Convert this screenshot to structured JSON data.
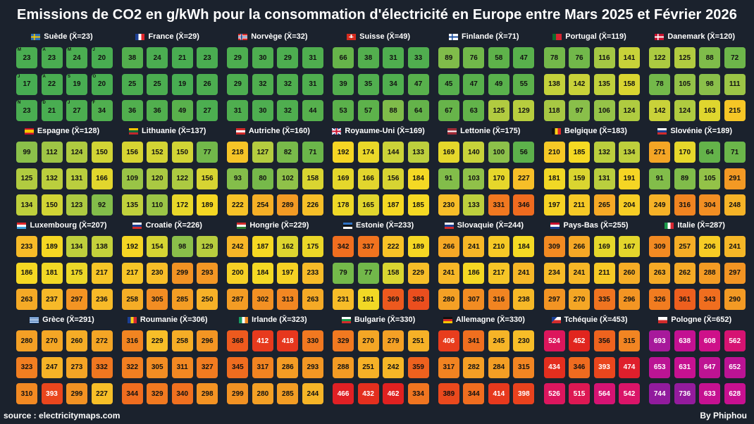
{
  "title": "Emissions de CO2 en g/kWh pour la consommation d'électricité en Europe entre Mars 2025 et Février 2026",
  "footer": {
    "source": "source : electricitymaps.com",
    "author": "By Phiphou"
  },
  "chart_data": {
    "type": "heatmap",
    "unit": "g/kWh",
    "period": "Mars 2025 - Février 2026",
    "month_letters": [
      "M",
      "A",
      "M",
      "J",
      "J",
      "A",
      "S",
      "O",
      "N",
      "D",
      "J",
      "F"
    ],
    "countries": [
      {
        "name": "Suède",
        "mean": 23,
        "flag": "se",
        "values": [
          23,
          23,
          24,
          20,
          17,
          22,
          19,
          20,
          23,
          21,
          27,
          34
        ]
      },
      {
        "name": "France",
        "mean": 29,
        "flag": "fr",
        "values": [
          38,
          24,
          21,
          23,
          25,
          25,
          19,
          26,
          36,
          36,
          49,
          27
        ]
      },
      {
        "name": "Norvège",
        "mean": 32,
        "flag": "no",
        "values": [
          29,
          30,
          29,
          31,
          29,
          32,
          32,
          31,
          31,
          30,
          32,
          44
        ]
      },
      {
        "name": "Suisse",
        "mean": 49,
        "flag": "ch",
        "values": [
          66,
          38,
          31,
          33,
          39,
          35,
          34,
          47,
          53,
          57,
          88,
          64
        ]
      },
      {
        "name": "Finlande",
        "mean": 71,
        "flag": "fi",
        "values": [
          89,
          76,
          58,
          47,
          45,
          47,
          49,
          55,
          67,
          63,
          125,
          129
        ]
      },
      {
        "name": "Portugal",
        "mean": 119,
        "flag": "pt",
        "values": [
          78,
          76,
          116,
          141,
          138,
          142,
          135,
          158,
          118,
          97,
          106,
          124
        ]
      },
      {
        "name": "Danemark",
        "mean": 120,
        "flag": "dk",
        "values": [
          122,
          125,
          88,
          72,
          78,
          105,
          98,
          111,
          142,
          124,
          163,
          215
        ]
      },
      {
        "name": "Espagne",
        "mean": 128,
        "flag": "es",
        "values": [
          99,
          112,
          124,
          150,
          125,
          132,
          131,
          166,
          134,
          150,
          123,
          92
        ]
      },
      {
        "name": "Lithuanie",
        "mean": 137,
        "flag": "lt",
        "values": [
          156,
          152,
          150,
          77,
          109,
          120,
          122,
          156,
          135,
          110,
          172,
          189
        ]
      },
      {
        "name": "Autriche",
        "mean": 160,
        "flag": "at",
        "values": [
          218,
          127,
          82,
          71,
          93,
          80,
          102,
          158,
          222,
          254,
          289,
          226
        ]
      },
      {
        "name": "Royaume-Uni",
        "mean": 169,
        "flag": "gb",
        "values": [
          192,
          174,
          144,
          133,
          169,
          166,
          156,
          184,
          178,
          165,
          187,
          185
        ]
      },
      {
        "name": "Lettonie",
        "mean": 175,
        "flag": "lv",
        "values": [
          169,
          140,
          100,
          56,
          91,
          103,
          170,
          227,
          230,
          133,
          331,
          346
        ]
      },
      {
        "name": "Belgique",
        "mean": 183,
        "flag": "be",
        "values": [
          210,
          185,
          132,
          134,
          181,
          159,
          131,
          191,
          197,
          211,
          265,
          204
        ]
      },
      {
        "name": "Slovénie",
        "mean": 189,
        "flag": "si",
        "values": [
          271,
          170,
          64,
          71,
          91,
          89,
          105,
          291,
          249,
          316,
          304,
          248
        ]
      },
      {
        "name": "Luxembourg",
        "mean": 207,
        "flag": "lu",
        "values": [
          233,
          189,
          134,
          138,
          186,
          181,
          175,
          217,
          263,
          237,
          297,
          236
        ]
      },
      {
        "name": "Croatie",
        "mean": 226,
        "flag": "hr",
        "values": [
          192,
          154,
          98,
          129,
          217,
          230,
          299,
          293,
          258,
          305,
          285,
          250
        ]
      },
      {
        "name": "Hongrie",
        "mean": 229,
        "flag": "hu",
        "values": [
          242,
          187,
          162,
          175,
          200,
          184,
          197,
          233,
          287,
          302,
          313,
          263
        ]
      },
      {
        "name": "Estonie",
        "mean": 233,
        "flag": "ee",
        "values": [
          342,
          337,
          222,
          189,
          79,
          77,
          158,
          229,
          231,
          181,
          369,
          383
        ]
      },
      {
        "name": "Slovaquie",
        "mean": 244,
        "flag": "sk",
        "values": [
          266,
          241,
          210,
          184,
          241,
          186,
          217,
          241,
          280,
          307,
          316,
          238
        ]
      },
      {
        "name": "Pays-Bas",
        "mean": 255,
        "flag": "nl",
        "values": [
          309,
          266,
          169,
          167,
          234,
          241,
          211,
          260,
          297,
          270,
          335,
          296
        ]
      },
      {
        "name": "Italie",
        "mean": 287,
        "flag": "it",
        "values": [
          309,
          257,
          206,
          241,
          263,
          262,
          288,
          297,
          326,
          361,
          343,
          290
        ]
      },
      {
        "name": "Grèce",
        "mean": 291,
        "flag": "gr",
        "values": [
          280,
          270,
          260,
          272,
          323,
          247,
          273,
          332,
          310,
          393,
          299,
          227
        ]
      },
      {
        "name": "Roumanie",
        "mean": 306,
        "flag": "ro",
        "values": [
          316,
          229,
          258,
          296,
          322,
          305,
          311,
          327,
          344,
          329,
          340,
          298
        ]
      },
      {
        "name": "Irlande",
        "mean": 323,
        "flag": "ie",
        "values": [
          368,
          412,
          418,
          330,
          345,
          317,
          286,
          293,
          299,
          280,
          285,
          244
        ]
      },
      {
        "name": "Bulgarie",
        "mean": 330,
        "flag": "bg",
        "values": [
          329,
          270,
          279,
          251,
          288,
          251,
          242,
          359,
          466,
          432,
          462,
          334
        ]
      },
      {
        "name": "Allemagne",
        "mean": 330,
        "flag": "de",
        "values": [
          406,
          341,
          245,
          230,
          317,
          282,
          284,
          315,
          389,
          344,
          414,
          398
        ]
      },
      {
        "name": "Tchéquie",
        "mean": 453,
        "flag": "cz",
        "values": [
          524,
          452,
          356,
          315,
          434,
          346,
          393,
          474,
          526,
          515,
          564,
          542
        ]
      },
      {
        "name": "Pologne",
        "mean": 652,
        "flag": "pl",
        "values": [
          693,
          638,
          608,
          562,
          653,
          631,
          647,
          652,
          744,
          736,
          633,
          628
        ]
      }
    ]
  }
}
